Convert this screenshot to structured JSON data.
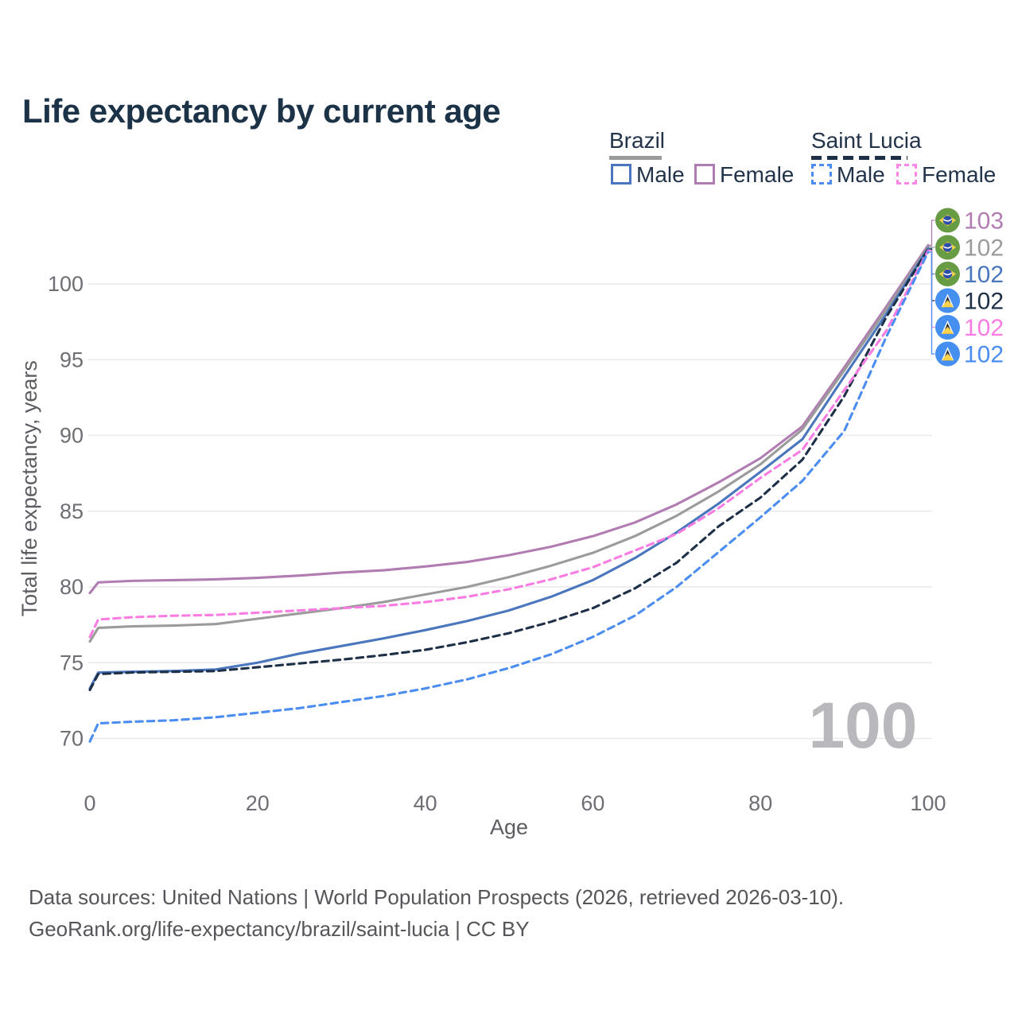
{
  "title": "Life expectancy by current age",
  "legend": {
    "brazil": {
      "label": "Brazil",
      "male_label": "Male",
      "female_label": "Female"
    },
    "saint_lucia": {
      "label": "Saint Lucia",
      "male_label": "Male",
      "female_label": "Female"
    }
  },
  "footer": {
    "line1": "Data sources: United Nations | World Population Prospects (2026, retrieved 2026-03-10).",
    "line2": "GeoRank.org/life-expectancy/brazil/saint-lucia | CC BY"
  },
  "chart_data": {
    "type": "line",
    "title": "Life expectancy by current age",
    "xlabel": "Age",
    "ylabel": "Total life expectancy, years",
    "xlim": [
      0,
      100
    ],
    "ylim": [
      68,
      103.5
    ],
    "xticks": [
      0,
      20,
      40,
      60,
      80,
      100
    ],
    "yticks": [
      70,
      75,
      80,
      85,
      90,
      95,
      100
    ],
    "grid": true,
    "legend_position": "top-right",
    "watermark": "100",
    "ages": [
      0,
      1,
      5,
      10,
      15,
      20,
      25,
      30,
      35,
      40,
      45,
      50,
      55,
      60,
      65,
      70,
      75,
      80,
      85,
      90,
      95,
      100
    ],
    "series": [
      {
        "id": "brazil-female",
        "name": "Brazil Female",
        "country": "Brazil",
        "sex": "Female",
        "color": "#b07cb1",
        "dashed": false,
        "flag": "brazil",
        "end_label": "103",
        "values": [
          79.6,
          80.3,
          80.4,
          80.45,
          80.5,
          80.6,
          80.75,
          80.95,
          81.1,
          81.35,
          81.65,
          82.1,
          82.65,
          83.35,
          84.25,
          85.45,
          86.9,
          88.5,
          90.6,
          94.5,
          98.5,
          102.55
        ]
      },
      {
        "id": "brazil-both",
        "name": "Brazil Both sexes",
        "country": "Brazil",
        "sex": "Both",
        "color": "#9b9b9b",
        "dashed": false,
        "flag": "brazil",
        "end_label": "102",
        "values": [
          76.4,
          77.3,
          77.4,
          77.45,
          77.55,
          77.9,
          78.25,
          78.6,
          79.0,
          79.5,
          80.0,
          80.65,
          81.4,
          82.25,
          83.35,
          84.7,
          86.3,
          88.1,
          90.4,
          94.3,
          98.3,
          102.45
        ]
      },
      {
        "id": "brazil-male",
        "name": "Brazil Male",
        "country": "Brazil",
        "sex": "Male",
        "color": "#4a76bd",
        "dashed": false,
        "flag": "brazil",
        "end_label": "102",
        "values": [
          73.3,
          74.35,
          74.4,
          74.45,
          74.55,
          75.0,
          75.6,
          76.1,
          76.6,
          77.15,
          77.75,
          78.45,
          79.35,
          80.45,
          81.9,
          83.6,
          85.5,
          87.6,
          89.75,
          93.9,
          98.0,
          102.35
        ]
      },
      {
        "id": "saint-lucia-both",
        "name": "Saint Lucia Both sexes",
        "country": "Saint Lucia",
        "sex": "Both",
        "color": "#1e3048",
        "dashed": true,
        "flag": "saint-lucia",
        "end_label": "102",
        "values": [
          73.2,
          74.25,
          74.35,
          74.4,
          74.45,
          74.7,
          74.95,
          75.2,
          75.5,
          75.85,
          76.35,
          76.95,
          77.7,
          78.6,
          79.9,
          81.6,
          84.0,
          85.9,
          88.4,
          92.6,
          97.8,
          102.3
        ]
      },
      {
        "id": "saint-lucia-female",
        "name": "Saint Lucia Female",
        "country": "Saint Lucia",
        "sex": "Female",
        "color": "#f97ce2",
        "dashed": true,
        "flag": "saint-lucia",
        "end_label": "102",
        "values": [
          76.7,
          77.85,
          78.0,
          78.1,
          78.15,
          78.3,
          78.45,
          78.6,
          78.75,
          79.0,
          79.35,
          79.85,
          80.5,
          81.3,
          82.4,
          83.5,
          85.2,
          87.2,
          89.05,
          93.0,
          96.9,
          102.2
        ]
      },
      {
        "id": "saint-lucia-male",
        "name": "Saint Lucia Male",
        "country": "Saint Lucia",
        "sex": "Male",
        "color": "#4b8df0",
        "dashed": true,
        "flag": "saint-lucia",
        "end_label": "102",
        "values": [
          69.8,
          71.0,
          71.1,
          71.2,
          71.4,
          71.7,
          72.0,
          72.4,
          72.8,
          73.3,
          73.9,
          74.65,
          75.55,
          76.7,
          78.1,
          80.0,
          82.3,
          84.6,
          87.0,
          90.3,
          96.5,
          102.1
        ]
      }
    ]
  }
}
